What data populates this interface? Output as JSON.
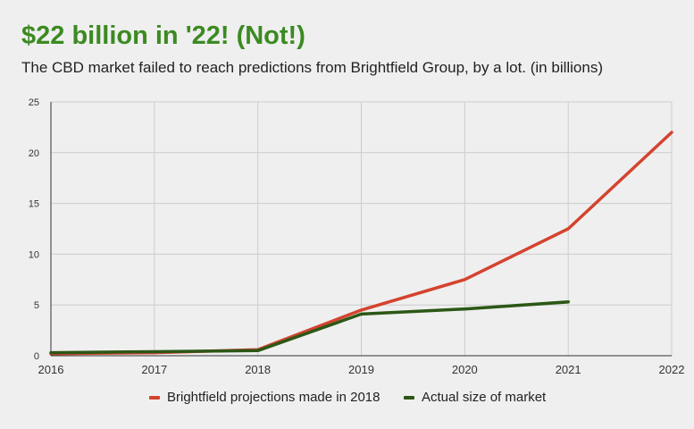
{
  "header": {
    "title": "$22 billion in '22! (Not!)",
    "subtitle": "The CBD market failed to reach predictions from Brightfield Group, by a lot. (in billions)"
  },
  "colors": {
    "title": "#3c8a22",
    "projection": "#d4432e",
    "actual": "#2c5716",
    "grid": "#cccccc",
    "background": "#efefef"
  },
  "chart_data": {
    "type": "line",
    "title": "$22 billion in '22! (Not!)",
    "subtitle": "The CBD market failed to reach predictions from Brightfield Group, by a lot. (in billions)",
    "xlabel": "",
    "ylabel": "",
    "x": [
      2016,
      2017,
      2018,
      2019,
      2020,
      2021,
      2022
    ],
    "xlim": [
      2016,
      2022
    ],
    "ylim": [
      0,
      25
    ],
    "yticks": [
      0,
      5,
      10,
      15,
      20,
      25
    ],
    "grid": true,
    "legend_position": "bottom",
    "series": [
      {
        "name": "Brightfield projections made in 2018",
        "color": "#d4432e",
        "points": [
          [
            2016,
            0.2
          ],
          [
            2017,
            0.3
          ],
          [
            2018,
            0.6
          ],
          [
            2019,
            4.5
          ],
          [
            2020,
            7.5
          ],
          [
            2021,
            12.5
          ],
          [
            2022,
            22
          ]
        ]
      },
      {
        "name": "Actual size of market",
        "color": "#2c5716",
        "points": [
          [
            2016,
            0.3
          ],
          [
            2017,
            0.4
          ],
          [
            2018,
            0.5
          ],
          [
            2019,
            4.1
          ],
          [
            2020,
            4.6
          ],
          [
            2021,
            5.3
          ]
        ]
      }
    ]
  }
}
